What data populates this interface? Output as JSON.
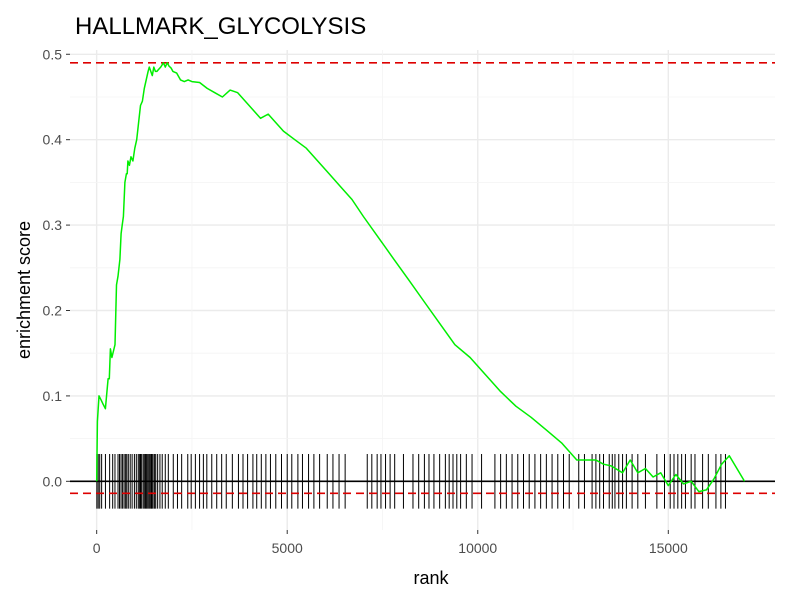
{
  "chart_data": {
    "type": "line",
    "title": "HALLMARK_GLYCOLYSIS",
    "xlabel": "rank",
    "ylabel": "enrichment score",
    "xlim": [
      -700,
      17800
    ],
    "ylim": [
      -0.057,
      0.505
    ],
    "grid": true,
    "x_ticks": [
      0,
      5000,
      10000,
      15000
    ],
    "x_tick_labels": [
      "0",
      "5000",
      "10000",
      "15000"
    ],
    "y_ticks": [
      0.0,
      0.1,
      0.2,
      0.3,
      0.4,
      0.5
    ],
    "y_tick_labels": [
      "0.0",
      "0.1",
      "0.2",
      "0.3",
      "0.4",
      "0.5"
    ],
    "max_es_line": 0.49,
    "min_es_line": -0.014,
    "zero_line": 0,
    "colors": {
      "curve": "#00ee00",
      "threshold": "#dd0000",
      "hits": "#000000",
      "grid": "#ebebeb",
      "zero": "#000000"
    },
    "series": [
      {
        "x": [
          0,
          20,
          60,
          120,
          170,
          230,
          300,
          330,
          360,
          400,
          480,
          520,
          560,
          610,
          640,
          670,
          700,
          740,
          780,
          800,
          820,
          860,
          900,
          950,
          1000,
          1050,
          1100,
          1150,
          1200,
          1250,
          1300,
          1350,
          1380,
          1420,
          1460,
          1500,
          1540,
          1580,
          1620,
          1680,
          1750,
          1800,
          1850,
          1900,
          1950,
          2000,
          2100,
          2200,
          2300,
          2400,
          2500,
          2700,
          2900,
          3100,
          3300,
          3500,
          3700,
          3900,
          4100,
          4300,
          4500,
          4700,
          4900,
          5200,
          5500,
          5800,
          6100,
          6400,
          6700,
          7000,
          7400,
          7800,
          8200,
          8600,
          9000,
          9400,
          9800,
          10200,
          10600,
          11000,
          11400,
          11800,
          12200,
          12600,
          12900,
          13100,
          13300,
          13500,
          13800,
          14000,
          14200,
          14400,
          14600,
          14800,
          15000,
          15200,
          15400,
          15600,
          15800,
          16000,
          16200,
          16400,
          16600,
          16800,
          17000
        ],
        "y": [
          0.0,
          0.07,
          0.1,
          0.095,
          0.09,
          0.085,
          0.12,
          0.12,
          0.155,
          0.145,
          0.16,
          0.23,
          0.24,
          0.26,
          0.29,
          0.3,
          0.31,
          0.35,
          0.36,
          0.36,
          0.375,
          0.37,
          0.38,
          0.375,
          0.39,
          0.4,
          0.42,
          0.44,
          0.445,
          0.46,
          0.47,
          0.48,
          0.485,
          0.48,
          0.475,
          0.485,
          0.48,
          0.48,
          0.482,
          0.485,
          0.49,
          0.485,
          0.49,
          0.486,
          0.484,
          0.48,
          0.478,
          0.47,
          0.468,
          0.47,
          0.468,
          0.467,
          0.46,
          0.455,
          0.45,
          0.458,
          0.455,
          0.445,
          0.435,
          0.425,
          0.43,
          0.42,
          0.41,
          0.4,
          0.39,
          0.375,
          0.36,
          0.345,
          0.33,
          0.31,
          0.285,
          0.26,
          0.235,
          0.21,
          0.185,
          0.16,
          0.145,
          0.125,
          0.105,
          0.088,
          0.075,
          0.06,
          0.045,
          0.025,
          0.025,
          0.025,
          0.02,
          0.018,
          0.01,
          0.025,
          0.01,
          0.015,
          0.005,
          0.01,
          -0.005,
          0.008,
          -0.003,
          0.0,
          -0.012,
          -0.01,
          0.003,
          0.02,
          0.03,
          0.015,
          0.0
        ]
      }
    ],
    "hits": [
      5,
      40,
      80,
      130,
      230,
      340,
      420,
      480,
      560,
      600,
      640,
      680,
      720,
      760,
      790,
      830,
      880,
      930,
      990,
      1040,
      1090,
      1120,
      1150,
      1180,
      1220,
      1250,
      1280,
      1310,
      1340,
      1370,
      1400,
      1430,
      1450,
      1480,
      1520,
      1550,
      1600,
      1660,
      1720,
      1800,
      1880,
      2010,
      2120,
      2230,
      2390,
      2480,
      2590,
      2700,
      2800,
      2890,
      3020,
      3150,
      3280,
      3400,
      3560,
      3720,
      3840,
      3960,
      4100,
      4200,
      4320,
      4440,
      4560,
      4700,
      4850,
      5000,
      5120,
      5280,
      5400,
      5560,
      5700,
      5850,
      6050,
      6200,
      6360,
      6520,
      7100,
      7220,
      7360,
      7460,
      7580,
      7700,
      7820,
      8050,
      8300,
      8450,
      8600,
      8720,
      8850,
      9000,
      9150,
      9250,
      9350,
      9450,
      9550,
      9700,
      9850,
      10100,
      10450,
      10600,
      10750,
      10900,
      11050,
      11200,
      11350,
      11500,
      11650,
      11800,
      11950,
      12100,
      12250,
      12400,
      12650,
      12800,
      13000,
      13100,
      13200,
      13300,
      13450,
      13530,
      13600,
      13700,
      13800,
      13900,
      14050,
      14200,
      14400,
      14700,
      14900,
      15050,
      15150,
      15250,
      15350,
      15450,
      15600,
      15700,
      15900,
      16050,
      16250,
      16380,
      16500
    ]
  }
}
